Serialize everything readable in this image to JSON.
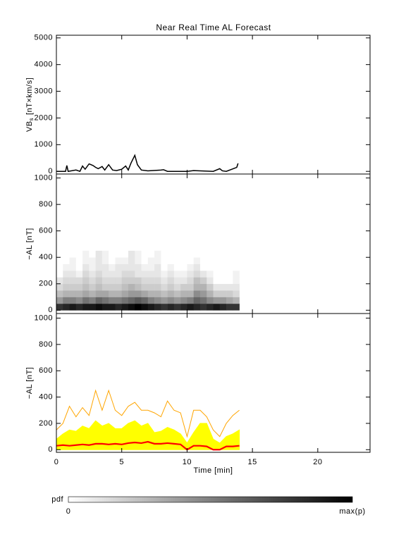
{
  "title": "Near Real Time AL Forecast",
  "chart_data": [
    {
      "type": "line",
      "ylabel": [
        "VB",
        "s",
        "[nT×km/s]"
      ],
      "xlim": [
        0,
        24
      ],
      "xticks": [
        0,
        5,
        10,
        15,
        20
      ],
      "ylim": [
        -100,
        5100
      ],
      "yticks": [
        0,
        1000,
        2000,
        3000,
        4000,
        5000
      ],
      "x": [
        0,
        0.7,
        0.8,
        0.9,
        1.5,
        1.8,
        2.0,
        2.2,
        2.5,
        2.8,
        3.0,
        3.2,
        3.5,
        3.7,
        4.0,
        4.3,
        4.6,
        5.0,
        5.3,
        5.5,
        5.7,
        6.0,
        6.2,
        6.5,
        7.0,
        8.0,
        8.2,
        8.5,
        10,
        10.5,
        12,
        12.5,
        12.7,
        13,
        13.8,
        13.9
      ],
      "series": [
        {
          "color": "#000000",
          "values": [
            0,
            0,
            220,
            0,
            50,
            0,
            200,
            80,
            280,
            220,
            150,
            100,
            180,
            50,
            250,
            50,
            30,
            80,
            200,
            50,
            300,
            600,
            250,
            50,
            20,
            50,
            60,
            0,
            0,
            30,
            0,
            100,
            20,
            0,
            150,
            300
          ]
        }
      ]
    },
    {
      "type": "heatmap",
      "ylabel": "−AL [nT]",
      "xlim": [
        0,
        24
      ],
      "xticks": [
        0,
        5,
        10,
        15,
        20
      ],
      "ylim": [
        -25,
        1030
      ],
      "yticks": [
        0,
        200,
        400,
        600,
        800,
        1000
      ],
      "x_bins": [
        0,
        0.5,
        1,
        1.5,
        2,
        2.5,
        3,
        3.5,
        4,
        4.5,
        5,
        5.5,
        6,
        6.5,
        7,
        7.5,
        8,
        8.5,
        9,
        9.5,
        10,
        10.5,
        11,
        11.5,
        12,
        12.5,
        13,
        13.5,
        14
      ],
      "y_bins": [
        0,
        50,
        100,
        150,
        200,
        250,
        300,
        350,
        400,
        450
      ],
      "pdf": [
        [
          0.8,
          0.85,
          0.9,
          0.85,
          0.9,
          0.9,
          0.95,
          0.9,
          0.9,
          0.85,
          0.9,
          0.95,
          1,
          0.95,
          0.9,
          0.85,
          0.8,
          0.85,
          0.8,
          0.85,
          0.9,
          0.85,
          0.8,
          0.85,
          0.9,
          0.85,
          0.8,
          0.8
        ],
        [
          0.4,
          0.5,
          0.5,
          0.45,
          0.55,
          0.5,
          0.6,
          0.55,
          0.5,
          0.5,
          0.55,
          0.6,
          0.65,
          0.6,
          0.5,
          0.45,
          0.4,
          0.45,
          0.4,
          0.45,
          0.5,
          0.6,
          0.55,
          0.45,
          0.4,
          0.4,
          0.35,
          0.3
        ],
        [
          0.25,
          0.3,
          0.3,
          0.3,
          0.35,
          0.3,
          0.35,
          0.35,
          0.3,
          0.3,
          0.35,
          0.4,
          0.4,
          0.35,
          0.3,
          0.3,
          0.25,
          0.3,
          0.25,
          0.3,
          0.3,
          0.45,
          0.4,
          0.3,
          0.2,
          0.2,
          0.2,
          0.15
        ],
        [
          0.15,
          0.2,
          0.2,
          0.2,
          0.25,
          0.2,
          0.25,
          0.2,
          0.2,
          0.2,
          0.25,
          0.3,
          0.25,
          0.2,
          0.2,
          0.2,
          0.15,
          0.2,
          0.15,
          0.2,
          0.2,
          0.3,
          0.3,
          0.2,
          0.1,
          0.1,
          0.1,
          0.1
        ],
        [
          0.1,
          0.15,
          0.15,
          0.15,
          0.2,
          0.15,
          0.2,
          0.15,
          0.15,
          0.15,
          0.2,
          0.2,
          0.2,
          0.15,
          0.15,
          0.15,
          0.1,
          0.15,
          0.1,
          0.1,
          0.15,
          0.25,
          0.2,
          0.1,
          0,
          0,
          0,
          0.05
        ],
        [
          0,
          0.1,
          0.1,
          0.05,
          0.15,
          0.1,
          0.15,
          0.1,
          0.1,
          0.1,
          0.15,
          0.15,
          0.1,
          0.1,
          0.1,
          0.1,
          0.05,
          0.1,
          0.05,
          0.05,
          0.1,
          0.15,
          0.1,
          0.05,
          0,
          0,
          0,
          0.05
        ],
        [
          0,
          0.05,
          0.05,
          0,
          0.1,
          0.05,
          0.1,
          0.1,
          0.05,
          0.1,
          0.1,
          0.1,
          0.1,
          0.05,
          0.05,
          0.1,
          0,
          0.05,
          0,
          0,
          0.05,
          0.1,
          0,
          0,
          0,
          0,
          0,
          0
        ],
        [
          0,
          0,
          0.05,
          0,
          0.05,
          0.05,
          0.1,
          0.05,
          0,
          0.05,
          0.05,
          0.1,
          0.05,
          0,
          0.05,
          0.05,
          0,
          0,
          0,
          0,
          0,
          0.05,
          0,
          0,
          0,
          0,
          0,
          0
        ],
        [
          0,
          0,
          0,
          0,
          0.05,
          0,
          0.1,
          0.05,
          0,
          0,
          0,
          0.1,
          0.05,
          0,
          0,
          0.05,
          0,
          0,
          0,
          0,
          0,
          0,
          0,
          0,
          0,
          0,
          0,
          0
        ]
      ]
    },
    {
      "type": "line",
      "ylabel": "−AL [nT]",
      "xlabel": "Time [min]",
      "xlim": [
        0,
        24
      ],
      "xticks": [
        0,
        5,
        10,
        15,
        20
      ],
      "ylim": [
        -20,
        1035
      ],
      "yticks": [
        0,
        200,
        400,
        600,
        800,
        1000
      ],
      "x": [
        0,
        0.5,
        1,
        1.5,
        2,
        2.5,
        3,
        3.5,
        4,
        4.5,
        5,
        5.5,
        6,
        6.5,
        7,
        7.5,
        8,
        8.5,
        9,
        9.5,
        10,
        10.5,
        11,
        11.5,
        12,
        12.5,
        13,
        13.5,
        14
      ],
      "series": [
        {
          "color": "#ffa500",
          "values": [
            150,
            200,
            330,
            250,
            320,
            260,
            450,
            300,
            450,
            300,
            260,
            330,
            360,
            300,
            300,
            280,
            250,
            370,
            300,
            280,
            100,
            300,
            300,
            250,
            150,
            100,
            200,
            260,
            300
          ]
        },
        {
          "color": "#ffff00",
          "fill": true,
          "values": [
            80,
            120,
            150,
            140,
            180,
            160,
            220,
            180,
            200,
            160,
            160,
            200,
            220,
            180,
            200,
            130,
            140,
            170,
            150,
            120,
            50,
            130,
            200,
            200,
            80,
            50,
            100,
            120,
            150
          ]
        },
        {
          "color": "#ff0000",
          "values": [
            30,
            35,
            30,
            35,
            40,
            35,
            45,
            45,
            40,
            45,
            40,
            50,
            55,
            50,
            60,
            45,
            45,
            50,
            45,
            40,
            0,
            30,
            30,
            25,
            0,
            0,
            25,
            25,
            30
          ]
        }
      ]
    }
  ],
  "colorbar": {
    "label": "pdf",
    "min_label": "0",
    "max_label": "max(p)"
  }
}
